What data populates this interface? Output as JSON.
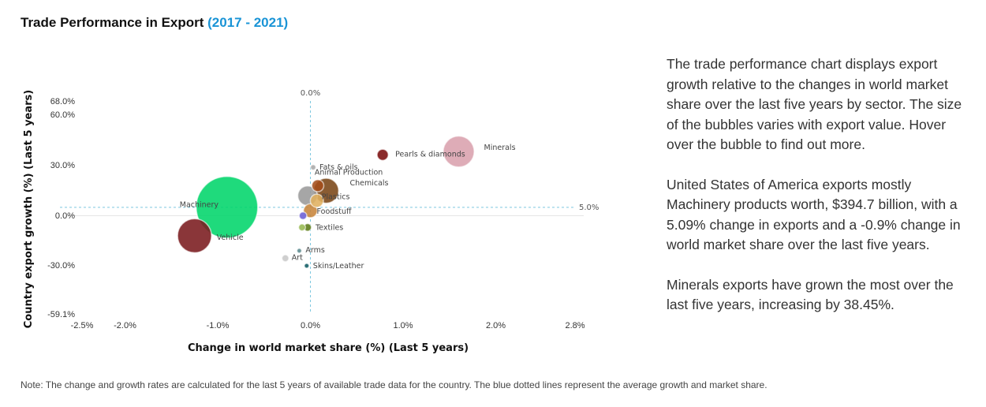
{
  "header": {
    "title": "Trade Performance in Export",
    "range": "(2017 - 2021)"
  },
  "description": {
    "p1": "The trade performance chart displays export growth relative to the changes in world market share over the last five years by sector. The size of the bubbles varies with export value. Hover over the bubble to find out more.",
    "p2": "United States of America exports mostly Machinery products worth, $394.7 billion, with a 5.09% change in exports and a -0.9% change in world market share over the last five years.",
    "p3": "Minerals exports have grown the most over the last five years, increasing by 38.45%."
  },
  "note": "Note: The change and growth rates are calculated for the last 5 years of available trade data for the country. The blue dotted lines represent the average growth and market share.",
  "chart_data": {
    "type": "scatter",
    "xlabel": "Change in world market share (%) (Last 5 years)",
    "ylabel": "Country export growth (%) (Last 5 years)",
    "xlim": [
      -2.5,
      2.8
    ],
    "ylim": [
      -59.1,
      68.0
    ],
    "x_ticks": [
      {
        "v": -2.5,
        "label": "-2.5%"
      },
      {
        "v": -2.0,
        "label": "-2.0%"
      },
      {
        "v": -1.0,
        "label": "-1.0%"
      },
      {
        "v": 0.0,
        "label": "0.0%"
      },
      {
        "v": 1.0,
        "label": "1.0%"
      },
      {
        "v": 2.0,
        "label": "2.0%"
      },
      {
        "v": 2.8,
        "label": "2.8%"
      }
    ],
    "y_ticks": [
      {
        "v": 68.0,
        "label": "68.0%"
      },
      {
        "v": 60.0,
        "label": "60.0%"
      },
      {
        "v": 30.0,
        "label": "30.0%"
      },
      {
        "v": 0.0,
        "label": "0.0%"
      },
      {
        "v": -30.0,
        "label": "-30.0%"
      },
      {
        "v": -59.1,
        "label": "-59.1%"
      }
    ],
    "avg_x": {
      "value": 0.0,
      "label": "0.0%"
    },
    "avg_y": {
      "value": 5.0,
      "label": "5.0%"
    },
    "points": [
      {
        "name": "Minerals",
        "x": 1.6,
        "y": 38.45,
        "size": 100,
        "color": "#d9a0ad"
      },
      {
        "name": "Pearls & diamonds",
        "x": 0.78,
        "y": 36.5,
        "size": 13,
        "color": "#7a0c0c"
      },
      {
        "name": "Fats & oils",
        "x": 0.03,
        "y": 29.0,
        "size": 3,
        "color": "#a8a8a8"
      },
      {
        "name": "Animal Production",
        "x": 0.08,
        "y": 18.0,
        "size": 15,
        "color": "#a34d1a"
      },
      {
        "name": "Chemicals",
        "x": 0.17,
        "y": 15.0,
        "size": 65,
        "color": "#7a4516"
      },
      {
        "name": "",
        "x": -0.03,
        "y": 12.0,
        "size": 40,
        "color": "#9a9a9a"
      },
      {
        "name": "Plastics",
        "x": 0.07,
        "y": 9.0,
        "size": 18,
        "color": "#e0b060"
      },
      {
        "name": "Foodstuff",
        "x": 0.0,
        "y": 3.0,
        "size": 20,
        "color": "#c7843a"
      },
      {
        "name": "Machinery",
        "x": -0.9,
        "y": 5.09,
        "size": 394.7,
        "color": "#00d56a"
      },
      {
        "name": "",
        "x": -0.08,
        "y": 0.0,
        "size": 6,
        "color": "#6b5fd6"
      },
      {
        "name": "Vehicle",
        "x": -1.25,
        "y": -12.0,
        "size": 120,
        "color": "#7a1a1e"
      },
      {
        "name": "Textiles",
        "x": -0.03,
        "y": -7.0,
        "size": 6,
        "color": "#5a7a15"
      },
      {
        "name": "",
        "x": -0.09,
        "y": -7.0,
        "size": 5,
        "color": "#96b850"
      },
      {
        "name": "Arms",
        "x": -0.12,
        "y": -21.0,
        "size": 2,
        "color": "#5a8a8e"
      },
      {
        "name": "Art",
        "x": -0.27,
        "y": -25.5,
        "size": 5,
        "color": "#c8c8c8"
      },
      {
        "name": "Skins/Leather",
        "x": -0.04,
        "y": -30.0,
        "size": 2,
        "color": "#0e5a62"
      }
    ]
  }
}
